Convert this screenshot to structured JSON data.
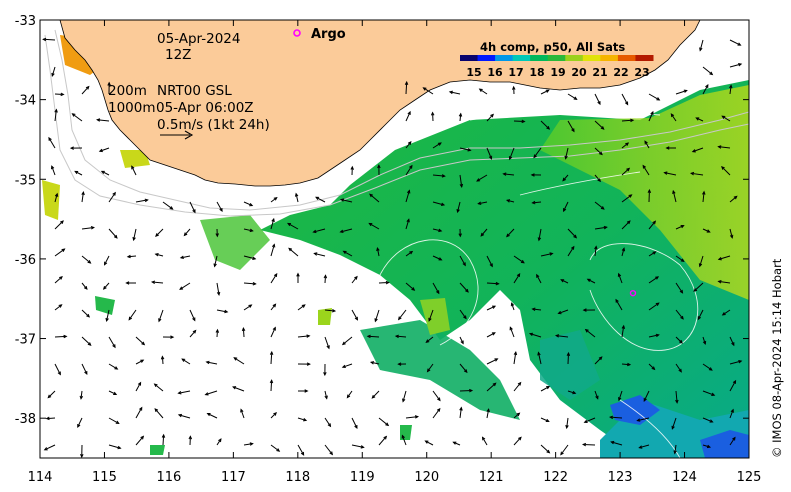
{
  "map": {
    "x_axis": {
      "ticks": [
        "114",
        "115",
        "116",
        "117",
        "118",
        "119",
        "120",
        "121",
        "122",
        "123",
        "124",
        "125"
      ],
      "range": [
        114,
        125
      ],
      "unit": "degrees longitude E"
    },
    "y_axis": {
      "ticks": [
        "-33",
        "-34",
        "-35",
        "-36",
        "-37",
        "-38"
      ],
      "range": [
        -38.5,
        -33
      ],
      "unit": "degrees latitude"
    },
    "annotations": {
      "date": "05-Apr-2024",
      "time": "12Z",
      "depth_200": "200m",
      "product": "NRT00 GSL",
      "depth_1000": "1000m",
      "product_time": "05-Apr 06:00Z",
      "scale_label": "0.5m/s (1kt 24h)"
    },
    "legend": {
      "argo_label": "Argo",
      "argo_color": "#ff00ff"
    },
    "colorbar": {
      "title": "4h comp, p50, All Sats",
      "ticks": [
        "15",
        "16",
        "17",
        "18",
        "19",
        "20",
        "21",
        "22",
        "23"
      ],
      "colors": [
        "#08036e",
        "#0018ff",
        "#0097e8",
        "#00c8b8",
        "#00b85c",
        "#29b83a",
        "#9ad11c",
        "#e0e20a",
        "#f5b400",
        "#e65a00",
        "#b31a00"
      ]
    },
    "argo_floats": [
      {
        "lon": 123.2,
        "lat": -36.43
      }
    ],
    "land_color": "#fbcb99",
    "credit": "© IMOS 08-Apr-2024 15:14 Hobart"
  }
}
